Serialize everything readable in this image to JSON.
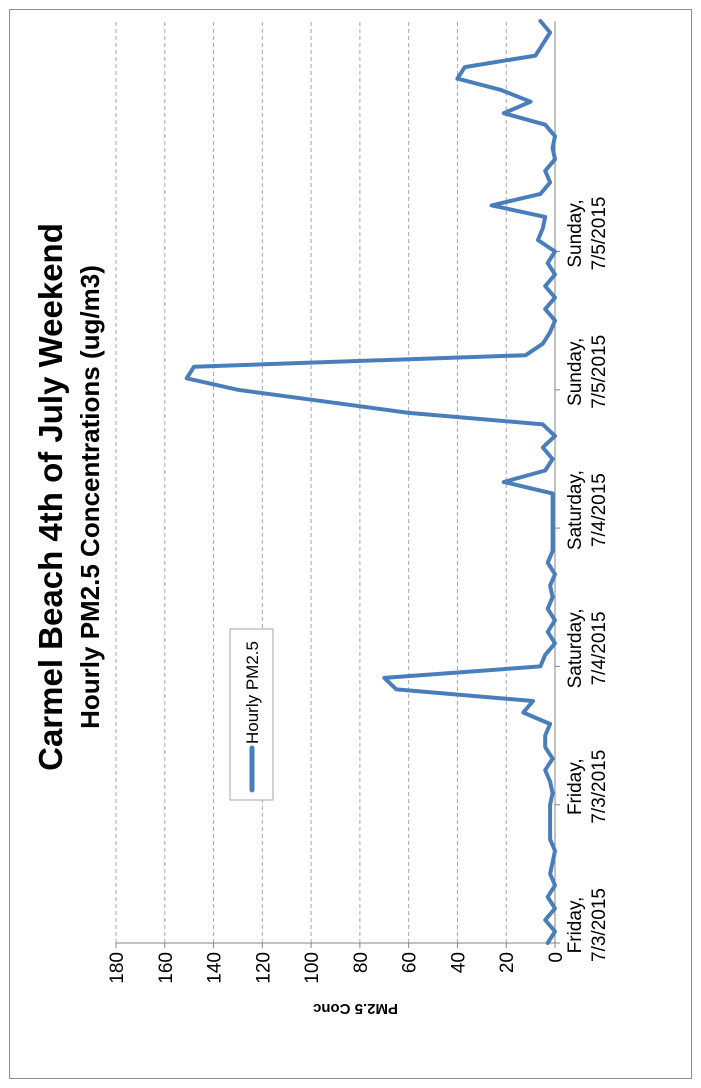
{
  "chart_data": {
    "type": "line",
    "title": "Carmel Beach 4th of July Weekend",
    "subtitle": "Hourly PM2.5 Concentrations (ug/m3)",
    "ylabel": "PM2.5 Conc",
    "xlabel": "",
    "ylim": [
      0,
      180
    ],
    "yticks": [
      0,
      20,
      40,
      60,
      80,
      100,
      120,
      140,
      160,
      180
    ],
    "grid": true,
    "legend_position": "top-left",
    "orientation": "rotated-90-ccw",
    "colors": {
      "series": "#4a7ebb",
      "grid": "#a6a6a6",
      "axis": "#868686",
      "frame": "#8c8c8c"
    },
    "x_labels": [
      {
        "index": 0,
        "line1": "Friday,",
        "line2": "7/3/2015"
      },
      {
        "index": 12,
        "line1": "Friday,",
        "line2": "7/3/2015"
      },
      {
        "index": 24,
        "line1": "Saturday,",
        "line2": "7/4/2015"
      },
      {
        "index": 36,
        "line1": "Saturday,",
        "line2": "7/4/2015"
      },
      {
        "index": 48,
        "line1": "Sunday,",
        "line2": "7/5/2015"
      },
      {
        "index": 60,
        "line1": "Sunday,",
        "line2": "7/5/2015"
      }
    ],
    "series": [
      {
        "name": "Hourly PM2.5",
        "values": [
          3,
          0,
          4,
          0,
          3,
          0,
          2,
          1,
          0,
          2,
          2,
          2,
          2,
          1,
          2,
          4,
          1,
          4,
          4,
          2,
          13,
          9,
          65,
          70,
          6,
          4,
          0,
          3,
          0,
          3,
          1,
          2,
          0,
          3,
          1,
          1,
          1,
          1,
          1,
          1,
          21,
          4,
          1,
          5,
          0,
          5,
          60,
          95,
          130,
          151,
          148,
          12,
          5,
          2,
          0,
          4,
          0,
          4,
          0,
          3,
          0,
          7,
          5,
          4,
          26,
          6,
          2,
          4,
          0,
          1,
          0,
          4,
          21,
          10,
          22,
          40,
          37,
          8,
          5,
          2,
          6
        ]
      }
    ]
  }
}
